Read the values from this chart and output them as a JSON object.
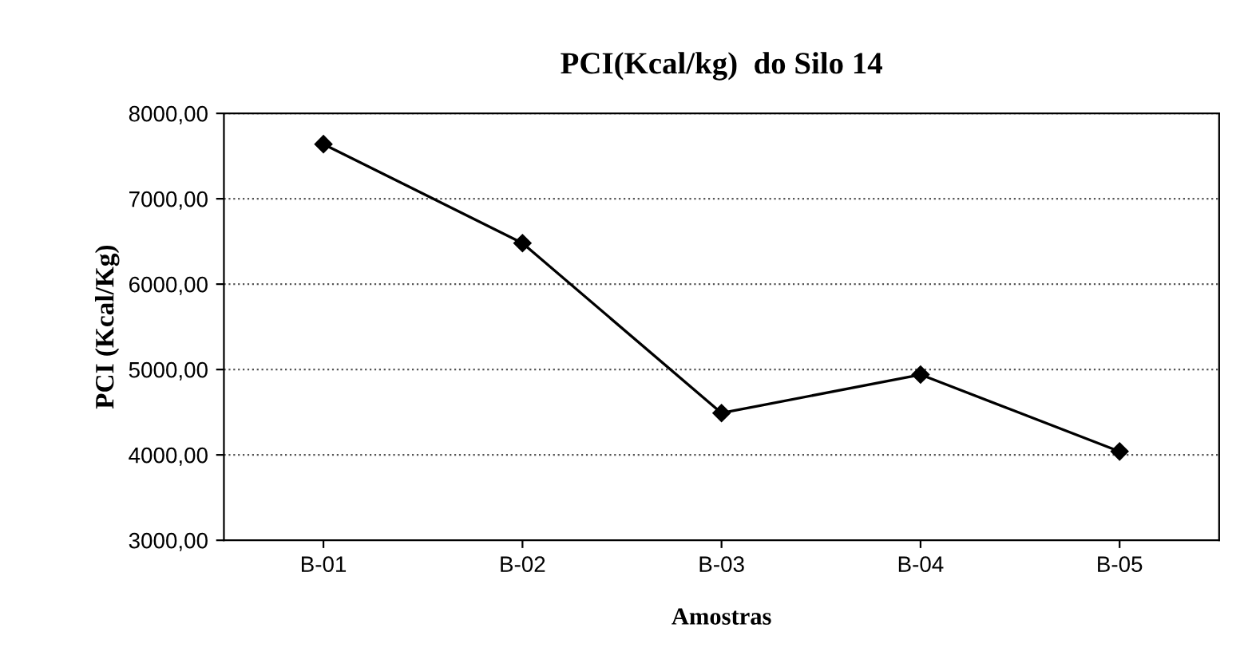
{
  "chart_data": {
    "type": "line",
    "title": "PCI(Kcal/kg)  do Silo 14",
    "xlabel": "Amostras",
    "ylabel": "PCI (Kcal/Kg)",
    "categories": [
      "B-01",
      "B-02",
      "B-03",
      "B-04",
      "B-05"
    ],
    "series": [
      {
        "color": "#000000",
        "values": [
          7640,
          6480,
          4490,
          4940,
          4040
        ]
      }
    ],
    "ylim": [
      3000,
      8000
    ],
    "yticks": [
      {
        "value": 3000,
        "label": "3000,00"
      },
      {
        "value": 4000,
        "label": "4000,00"
      },
      {
        "value": 5000,
        "label": "5000,00"
      },
      {
        "value": 6000,
        "label": "6000,00"
      },
      {
        "value": 7000,
        "label": "7000,00"
      },
      {
        "value": 8000,
        "label": "8000,00"
      }
    ],
    "grid": "y",
    "marker": "diamond",
    "line_style": "solid"
  }
}
